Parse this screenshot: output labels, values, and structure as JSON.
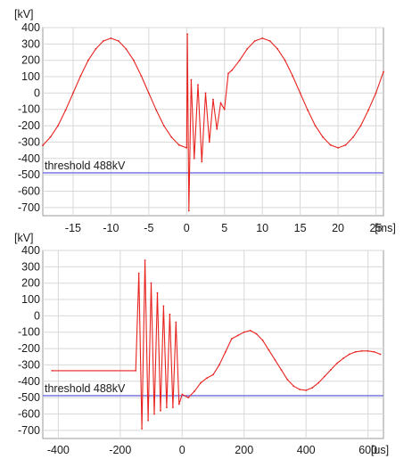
{
  "chart_data": [
    {
      "type": "line",
      "ylabel": "[kV]",
      "xunit": "[ms]",
      "xlim": [
        -19,
        26
      ],
      "ylim": [
        -750,
        400
      ],
      "xticks": [
        -15,
        -10,
        -5,
        0,
        5,
        10,
        15,
        20,
        25
      ],
      "yticks": [
        400,
        300,
        200,
        100,
        0,
        -100,
        -200,
        -300,
        -400,
        -500,
        -600,
        -700
      ],
      "xtick_labels": [
        "-15",
        "-10",
        "-5",
        "0",
        "5",
        "10",
        "15",
        "20",
        "25"
      ],
      "ytick_labels": [
        "400",
        "300",
        "200",
        "100",
        "0",
        "-100",
        "-200",
        "-300",
        "-400",
        "-500",
        "-600",
        "-700"
      ],
      "grid": true,
      "series": [
        {
          "color": "#e8231f",
          "description_points_x": [
            -19,
            -18,
            -17,
            -16,
            -15,
            -14,
            -13,
            -12,
            -11,
            -10,
            -9,
            -8,
            -7,
            -6,
            -5,
            -4,
            -3,
            -2,
            -1,
            0,
            0.1,
            0.3,
            0.6,
            1,
            1.5,
            2,
            2.5,
            3,
            3.5,
            4,
            4.5,
            5,
            5.5,
            6,
            7,
            8,
            9,
            10,
            11,
            12,
            13,
            14,
            15,
            16,
            17,
            18,
            19,
            20,
            21,
            22,
            23,
            24,
            25,
            26
          ],
          "values": [
            -320,
            -270,
            -200,
            -105,
            0,
            105,
            200,
            270,
            318,
            335,
            318,
            270,
            200,
            105,
            0,
            -105,
            -200,
            -270,
            -318,
            -335,
            360,
            -720,
            80,
            -400,
            50,
            -420,
            0,
            -300,
            -40,
            -220,
            -60,
            -100,
            120,
            140,
            200,
            270,
            318,
            335,
            318,
            270,
            200,
            105,
            0,
            -105,
            -200,
            -270,
            -318,
            -335,
            -318,
            -270,
            -200,
            -105,
            0,
            130
          ]
        }
      ],
      "threshold": {
        "label": "threshold 488kV",
        "value": -488,
        "color": "#6f6fe0"
      }
    },
    {
      "type": "line",
      "ylabel": "[kV]",
      "xunit": "[us]",
      "xlim": [
        -450,
        650
      ],
      "ylim": [
        -750,
        400
      ],
      "xticks": [
        -400,
        -200,
        0,
        200,
        400,
        600
      ],
      "yticks": [
        400,
        300,
        200,
        100,
        0,
        -100,
        -200,
        -300,
        -400,
        -500,
        -600,
        -700
      ],
      "xtick_labels": [
        "-400",
        "-200",
        "0",
        "200",
        "400",
        "600"
      ],
      "ytick_labels": [
        "400",
        "300",
        "200",
        "100",
        "0",
        "-100",
        "-200",
        "-300",
        "-400",
        "-500",
        "-600",
        "-700"
      ],
      "grid": true,
      "series": [
        {
          "color": "#e8231f",
          "description_points_x": [
            -420,
            -150,
            -140,
            -130,
            -120,
            -110,
            -100,
            -90,
            -80,
            -70,
            -60,
            -50,
            -40,
            -30,
            -20,
            -10,
            0,
            20,
            40,
            60,
            80,
            100,
            120,
            140,
            160,
            180,
            200,
            220,
            240,
            260,
            280,
            300,
            320,
            340,
            360,
            380,
            400,
            420,
            440,
            460,
            480,
            500,
            520,
            540,
            560,
            580,
            600,
            620,
            640
          ],
          "values": [
            -335,
            -335,
            260,
            -690,
            340,
            -640,
            200,
            -600,
            140,
            -580,
            60,
            -560,
            10,
            -560,
            -40,
            -540,
            -480,
            -500,
            -460,
            -410,
            -380,
            -360,
            -300,
            -220,
            -140,
            -120,
            -100,
            -90,
            -110,
            -150,
            -210,
            -270,
            -330,
            -390,
            -430,
            -450,
            -455,
            -440,
            -410,
            -370,
            -330,
            -290,
            -260,
            -235,
            -220,
            -215,
            -215,
            -220,
            -235
          ]
        }
      ],
      "threshold": {
        "label": "threshold 488kV",
        "value": -488,
        "color": "#6f6fe0"
      }
    }
  ]
}
